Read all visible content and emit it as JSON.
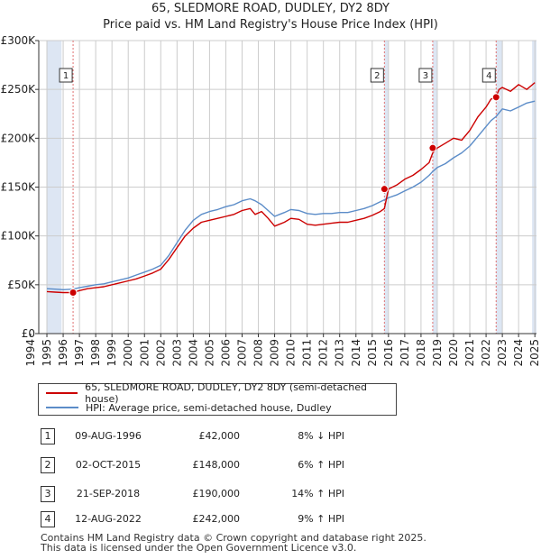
{
  "title_line1": "65, SLEDMORE ROAD, DUDLEY, DY2 8DY",
  "title_line2": "Price paid vs. HM Land Registry's House Price Index (HPI)",
  "colors": {
    "property": "#cc0000",
    "hpi": "#5b8cc8",
    "shade": "#dde6f3",
    "grid": "#cccccc",
    "vline": "#e07070"
  },
  "chart_data": {
    "type": "line",
    "title": "Price paid vs. HM Land Registry's House Price Index (HPI)",
    "xlabel": "",
    "ylabel": "",
    "xlim": [
      1994.5,
      2025.1
    ],
    "ylim": [
      0,
      300000
    ],
    "y_ticks": [
      0,
      50000,
      100000,
      150000,
      200000,
      250000,
      300000
    ],
    "y_tick_labels": [
      "£0",
      "£50K",
      "£100K",
      "£150K",
      "£200K",
      "£250K",
      "£300K"
    ],
    "x_ticks": [
      1994,
      1995,
      1996,
      1997,
      1998,
      1999,
      2000,
      2001,
      2002,
      2003,
      2004,
      2005,
      2006,
      2007,
      2008,
      2009,
      2010,
      2011,
      2012,
      2013,
      2014,
      2015,
      2016,
      2017,
      2018,
      2019,
      2020,
      2021,
      2022,
      2023,
      2024,
      2025
    ],
    "x_tick_labels": [
      "1994",
      "1995",
      "1996",
      "1997",
      "1998",
      "1999",
      "2000",
      "2001",
      "2002",
      "2003",
      "2004",
      "2005",
      "2006",
      "2007",
      "2008",
      "2009",
      "2010",
      "2011",
      "2012",
      "2013",
      "2014",
      "2015",
      "2016",
      "2017",
      "2018",
      "2019",
      "2020",
      "2021",
      "2022",
      "2023",
      "2024",
      "2025"
    ],
    "shaded_spans": [
      [
        1995.0,
        1995.9
      ],
      [
        2015.75,
        2016.0
      ],
      [
        2018.72,
        2019.0
      ],
      [
        2022.62,
        2023.0
      ],
      [
        2024.83,
        2025.1
      ]
    ],
    "series": [
      {
        "name": "65, SLEDMORE ROAD, DUDLEY, DY2 8DY (semi-detached house)",
        "color": "#cc0000",
        "x": [
          1995.0,
          1995.5,
          1996.0,
          1996.6,
          1997.0,
          1997.5,
          1998.0,
          1998.5,
          1999.0,
          1999.5,
          2000.0,
          2000.5,
          2001.0,
          2001.5,
          2002.0,
          2002.5,
          2003.0,
          2003.5,
          2004.0,
          2004.5,
          2005.0,
          2005.5,
          2006.0,
          2006.5,
          2007.0,
          2007.5,
          2007.8,
          2008.2,
          2008.6,
          2009.0,
          2009.3,
          2009.6,
          2010.0,
          2010.5,
          2011.0,
          2011.5,
          2012.0,
          2012.5,
          2013.0,
          2013.5,
          2014.0,
          2014.5,
          2015.0,
          2015.5,
          2015.75,
          2016.0,
          2016.5,
          2017.0,
          2017.5,
          2018.0,
          2018.5,
          2018.72,
          2019.0,
          2019.5,
          2020.0,
          2020.5,
          2021.0,
          2021.5,
          2022.0,
          2022.3,
          2022.6,
          2022.8,
          2023.0,
          2023.5,
          2024.0,
          2024.5,
          2025.0
        ],
        "y": [
          43000,
          42500,
          42000,
          42000,
          44000,
          46000,
          47000,
          48000,
          50000,
          52000,
          54000,
          56000,
          59000,
          62000,
          66000,
          76000,
          88000,
          100000,
          108000,
          114000,
          116000,
          118000,
          120000,
          122000,
          126000,
          128000,
          122000,
          125000,
          118000,
          110000,
          112000,
          114000,
          118000,
          117000,
          112000,
          111000,
          112000,
          113000,
          114000,
          114000,
          116000,
          118000,
          121000,
          125000,
          128000,
          148000,
          152000,
          158000,
          162000,
          168000,
          175000,
          185000,
          190000,
          195000,
          200000,
          198000,
          208000,
          222000,
          232000,
          240000,
          242000,
          250000,
          252000,
          248000,
          255000,
          250000,
          257000
        ]
      },
      {
        "name": "HPI: Average price, semi-detached house, Dudley",
        "color": "#5b8cc8",
        "x": [
          1995.0,
          1995.5,
          1996.0,
          1996.6,
          1997.0,
          1997.5,
          1998.0,
          1998.5,
          1999.0,
          1999.5,
          2000.0,
          2000.5,
          2001.0,
          2001.5,
          2002.0,
          2002.5,
          2003.0,
          2003.5,
          2004.0,
          2004.5,
          2005.0,
          2005.5,
          2006.0,
          2006.5,
          2007.0,
          2007.5,
          2007.8,
          2008.2,
          2008.6,
          2009.0,
          2009.3,
          2009.6,
          2010.0,
          2010.5,
          2011.0,
          2011.5,
          2012.0,
          2012.5,
          2013.0,
          2013.5,
          2014.0,
          2014.5,
          2015.0,
          2015.5,
          2015.75,
          2016.0,
          2016.5,
          2017.0,
          2017.5,
          2018.0,
          2018.5,
          2018.72,
          2019.0,
          2019.5,
          2020.0,
          2020.5,
          2021.0,
          2021.5,
          2022.0,
          2022.3,
          2022.6,
          2022.8,
          2023.0,
          2023.5,
          2024.0,
          2024.5,
          2025.0
        ],
        "y": [
          46000,
          45500,
          45000,
          45500,
          47000,
          48500,
          50000,
          51000,
          53000,
          55000,
          57000,
          60000,
          63000,
          66000,
          70000,
          80000,
          93000,
          106000,
          116000,
          122000,
          125000,
          127000,
          130000,
          132000,
          136000,
          138000,
          136000,
          132000,
          126000,
          120000,
          122000,
          124000,
          127000,
          126000,
          123000,
          122000,
          123000,
          123000,
          124000,
          124000,
          126000,
          128000,
          131000,
          135000,
          137000,
          139000,
          142000,
          146000,
          150000,
          155000,
          162000,
          166000,
          170000,
          174000,
          180000,
          185000,
          192000,
          202000,
          212000,
          218000,
          222000,
          226000,
          230000,
          228000,
          232000,
          236000,
          238000
        ]
      }
    ],
    "transactions": [
      {
        "label": "1",
        "x": 1996.61,
        "y": 42000
      },
      {
        "label": "2",
        "x": 2015.75,
        "y": 148000
      },
      {
        "label": "3",
        "x": 2018.72,
        "y": 190000
      },
      {
        "label": "4",
        "x": 2022.62,
        "y": 242000
      }
    ],
    "legend_position": "bottom"
  },
  "legend": {
    "property": "65, SLEDMORE ROAD, DUDLEY, DY2 8DY (semi-detached house)",
    "hpi": "HPI: Average price, semi-detached house, Dudley"
  },
  "transactions_table": [
    {
      "num": "1",
      "date": "09-AUG-1996",
      "price": "£42,000",
      "hpi": "8% ↓ HPI"
    },
    {
      "num": "2",
      "date": "02-OCT-2015",
      "price": "£148,000",
      "hpi": "6% ↑ HPI"
    },
    {
      "num": "3",
      "date": "21-SEP-2018",
      "price": "£190,000",
      "hpi": "14% ↑ HPI"
    },
    {
      "num": "4",
      "date": "12-AUG-2022",
      "price": "£242,000",
      "hpi": "9% ↑ HPI"
    }
  ],
  "footer": {
    "line1": "Contains HM Land Registry data © Crown copyright and database right 2025.",
    "line2": "This data is licensed under the Open Government Licence v3.0."
  }
}
